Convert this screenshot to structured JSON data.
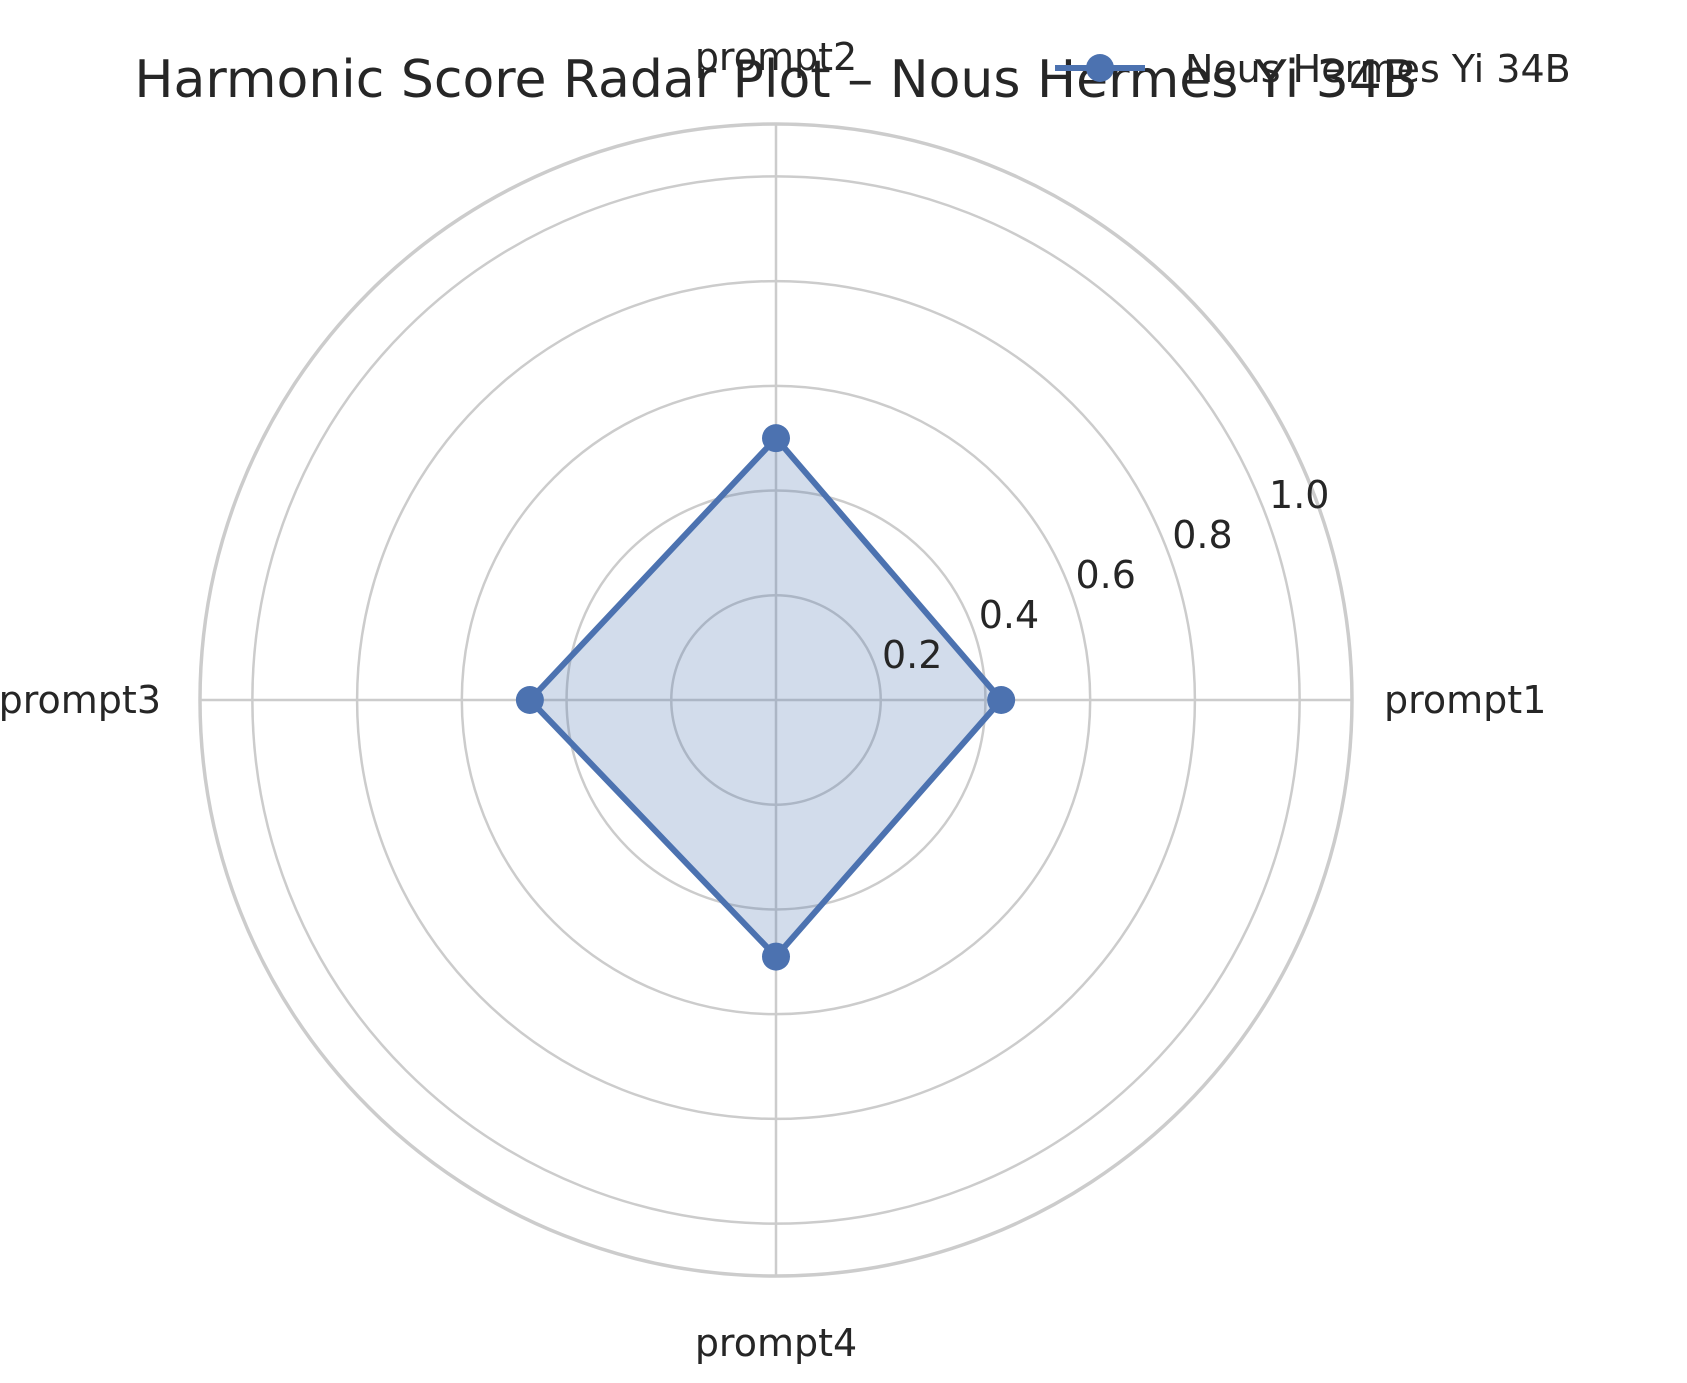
{
  "chart_data": {
    "type": "radar",
    "title": "Harmonic Score Radar Plot – Nous Hermes Yi 34B",
    "categories": [
      "prompt1",
      "prompt2",
      "prompt3",
      "prompt4"
    ],
    "series": [
      {
        "name": "Nous Hermes Yi 34B",
        "values": [
          0.43,
          0.5,
          0.47,
          0.49
        ],
        "color": "#4c72b0"
      }
    ],
    "rlim": [
      0,
      1.1
    ],
    "r_ticks": [
      0.2,
      0.4,
      0.6,
      0.8,
      1.0
    ],
    "r_tick_labels": [
      "0.2",
      "0.4",
      "0.6",
      "0.8",
      "1.0"
    ],
    "grid": true,
    "legend_position": "top-right",
    "grid_color": "#cccccc",
    "fill_opacity": 0.25
  }
}
